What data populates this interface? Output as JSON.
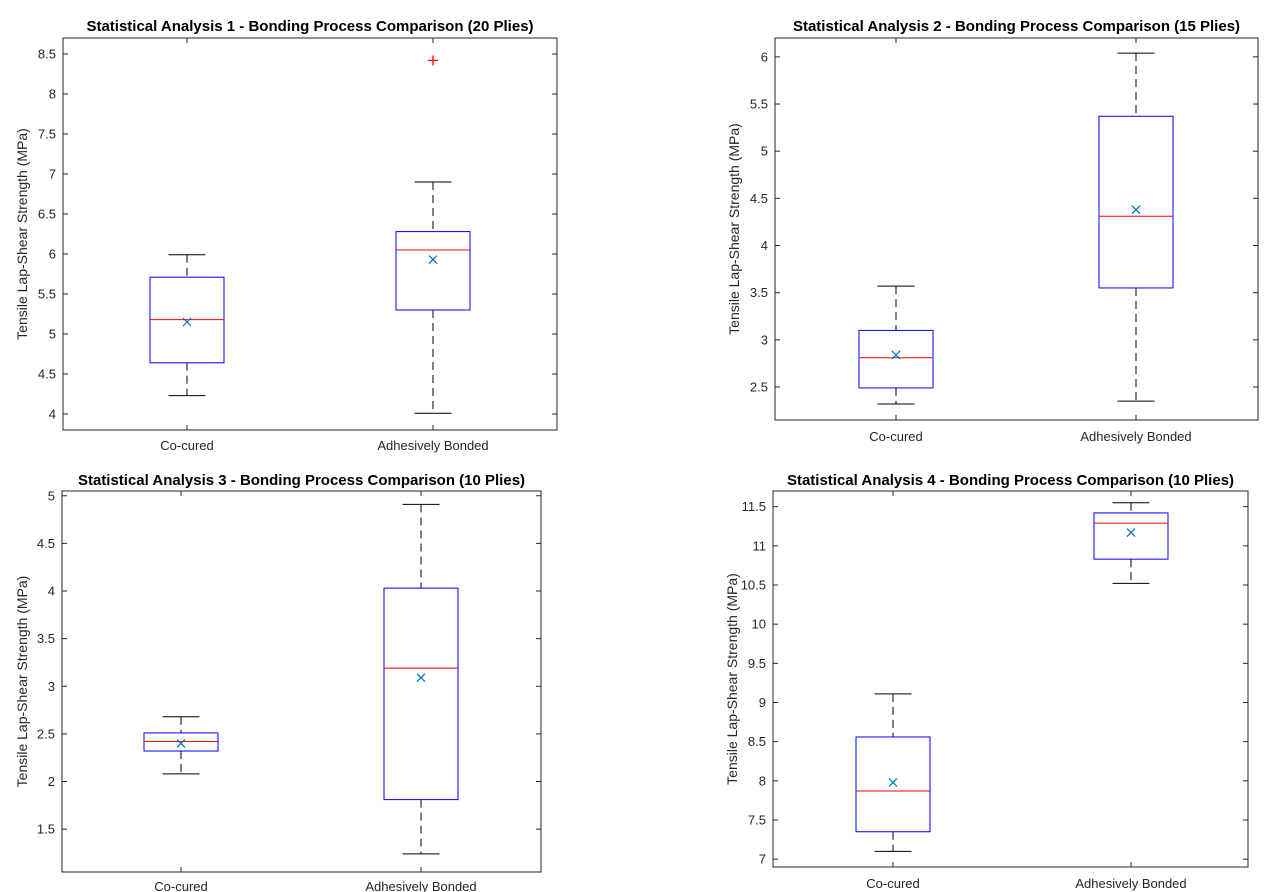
{
  "chart_data": [
    {
      "type": "box",
      "title": "Statistical Analysis 1 - Bonding Process Comparison (20 Plies)",
      "xlabel": "",
      "ylabel": "Tensile Lap-Shear Strength (MPa)",
      "ylim": [
        3.8,
        8.7
      ],
      "yticks": [
        "4",
        "4.5",
        "5",
        "5.5",
        "6",
        "6.5",
        "7",
        "7.5",
        "8",
        "8.5"
      ],
      "categories": [
        "Co-cured",
        "Adhesively Bonded"
      ],
      "boxes": [
        {
          "whisker_low": 4.23,
          "q1": 4.64,
          "median": 5.18,
          "q3": 5.71,
          "whisker_high": 5.99,
          "mean": 5.15,
          "outliers": []
        },
        {
          "whisker_low": 4.01,
          "q1": 5.3,
          "median": 6.05,
          "q3": 6.28,
          "whisker_high": 6.9,
          "mean": 5.93,
          "outliers": [
            8.42
          ]
        }
      ]
    },
    {
      "type": "box",
      "title": "Statistical Analysis 2 - Bonding Process Comparison (15 Plies)",
      "xlabel": "",
      "ylabel": "Tensile Lap-Shear Strength (MPa)",
      "ylim": [
        2.15,
        6.2
      ],
      "yticks": [
        "2.5",
        "3",
        "3.5",
        "4",
        "4.5",
        "5",
        "5.5",
        "6"
      ],
      "categories": [
        "Co-cured",
        "Adhesively Bonded"
      ],
      "boxes": [
        {
          "whisker_low": 2.32,
          "q1": 2.49,
          "median": 2.81,
          "q3": 3.1,
          "whisker_high": 3.57,
          "mean": 2.84,
          "outliers": []
        },
        {
          "whisker_low": 2.35,
          "q1": 3.55,
          "median": 4.31,
          "q3": 5.37,
          "whisker_high": 6.04,
          "mean": 4.38,
          "outliers": []
        }
      ]
    },
    {
      "type": "box",
      "title": "Statistical Analysis 3 - Bonding Process Comparison (10 Plies)",
      "xlabel": "",
      "ylabel": "Tensile Lap-Shear Strength (MPa)",
      "ylim": [
        1.05,
        5.05
      ],
      "yticks": [
        "1.5",
        "2",
        "2.5",
        "3",
        "3.5",
        "4",
        "4.5",
        "5"
      ],
      "categories": [
        "Co-cured",
        "Adhesively Bonded"
      ],
      "boxes": [
        {
          "whisker_low": 2.08,
          "q1": 2.32,
          "median": 2.42,
          "q3": 2.51,
          "whisker_high": 2.68,
          "mean": 2.4,
          "outliers": []
        },
        {
          "whisker_low": 1.24,
          "q1": 1.81,
          "median": 3.19,
          "q3": 4.03,
          "whisker_high": 4.91,
          "mean": 3.09,
          "outliers": []
        }
      ]
    },
    {
      "type": "box",
      "title": "Statistical Analysis 4 - Bonding Process Comparison (10 Plies)",
      "xlabel": "",
      "ylabel": "Tensile Lap-Shear Strength (MPa)",
      "ylim": [
        6.9,
        11.7
      ],
      "yticks": [
        "7",
        "7.5",
        "8",
        "8.5",
        "9",
        "9.5",
        "10",
        "10.5",
        "11",
        "11.5"
      ],
      "categories": [
        "Co-cured",
        "Adhesively Bonded"
      ],
      "boxes": [
        {
          "whisker_low": 7.1,
          "q1": 7.35,
          "median": 7.87,
          "q3": 8.56,
          "whisker_high": 9.11,
          "mean": 7.98,
          "outliers": []
        },
        {
          "whisker_low": 10.52,
          "q1": 10.83,
          "median": 11.29,
          "q3": 11.42,
          "whisker_high": 11.55,
          "mean": 11.17,
          "outliers": []
        }
      ]
    }
  ],
  "colors": {
    "box": "#0000ff",
    "median": "#ff0000",
    "whisker": "#000000",
    "mean_marker": "#0072bd",
    "outlier": "#ff0000",
    "axis": "#262626"
  }
}
